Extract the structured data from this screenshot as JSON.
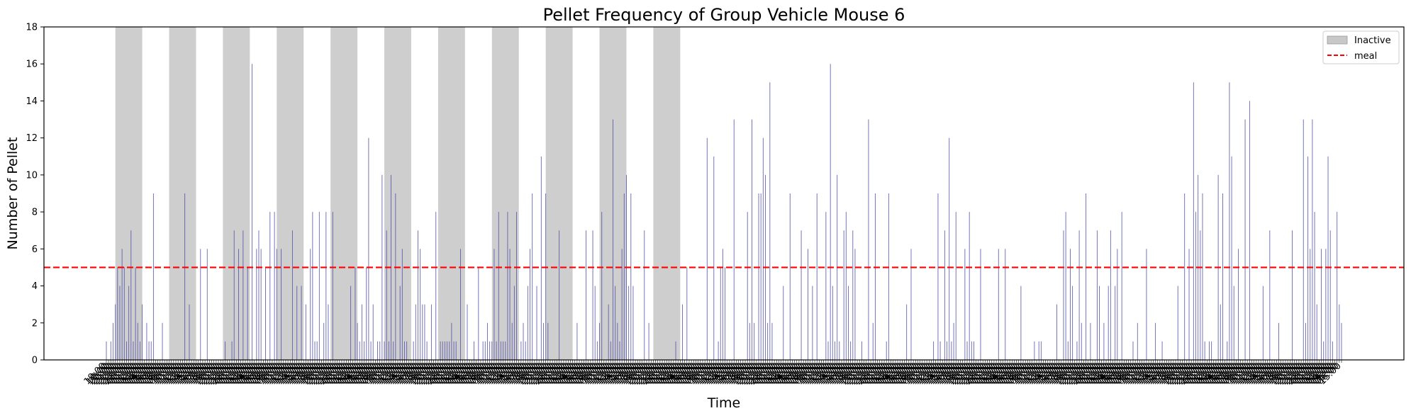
{
  "chart_data": {
    "type": "bar",
    "title": "Pellet Frequency of Group Vehicle Mouse 6",
    "xlabel": "Time",
    "ylabel": "Number of Pellet",
    "ylim": [
      0,
      18
    ],
    "yticks": [
      0,
      2,
      4,
      6,
      8,
      10,
      12,
      14,
      16,
      18
    ],
    "bar_color": "#4b4ba6",
    "meal_threshold": 5,
    "meal_color": "#ff0000",
    "inactive_color": "#bdbdbd",
    "legend": {
      "position": "top-right",
      "entries": [
        "Inactive",
        "meal"
      ]
    },
    "xtick_label_cycle": [
      "19:00",
      "20:00",
      "21:00",
      "22:00",
      "23:00",
      "00:00",
      "01:00",
      "02:00",
      "03:00",
      "04:00",
      "05:00",
      "06:00",
      "07:00",
      "08:00",
      "09:00",
      "10:00",
      "11:00",
      "12:00",
      "13:00",
      "14:00",
      "15:00",
      "16:00",
      "17:00",
      "18:00"
    ],
    "x_start_label": "19:00",
    "x_end_label": "15:00",
    "bars_per_hour": 2,
    "inactive_periods_hours": [
      [
        2,
        8
      ],
      [
        14,
        20
      ],
      [
        26,
        32
      ],
      [
        38,
        44
      ],
      [
        50,
        56
      ],
      [
        62,
        68
      ],
      [
        74,
        80
      ],
      [
        86,
        92
      ],
      [
        98,
        104
      ],
      [
        110,
        116
      ],
      [
        122,
        128
      ]
    ],
    "values": [
      1,
      0,
      1,
      2,
      3,
      5,
      4,
      6,
      5,
      1,
      4,
      7,
      1,
      5,
      2,
      1,
      3,
      0,
      2,
      1,
      1,
      9,
      0,
      0,
      0,
      2,
      0,
      0,
      0,
      0,
      0,
      0,
      0,
      0,
      0,
      9,
      0,
      3,
      0,
      0,
      0,
      0,
      6,
      0,
      0,
      6,
      0,
      0,
      0,
      0,
      0,
      0,
      0,
      1,
      0,
      0,
      1,
      7,
      0,
      6,
      0,
      7,
      0,
      5,
      0,
      16,
      0,
      6,
      7,
      6,
      0,
      5,
      0,
      8,
      0,
      8,
      6,
      0,
      6,
      0,
      0,
      0,
      0,
      7,
      0,
      4,
      0,
      4,
      0,
      3,
      0,
      6,
      8,
      1,
      1,
      8,
      0,
      2,
      8,
      3,
      0,
      8,
      0,
      0,
      0,
      0,
      0,
      0,
      0,
      4,
      0,
      5,
      2,
      1,
      3,
      1,
      5,
      12,
      1,
      3,
      0,
      1,
      1,
      10,
      1,
      7,
      1,
      10,
      1,
      9,
      0,
      4,
      6,
      1,
      1,
      0,
      0,
      1,
      3,
      7,
      6,
      3,
      3,
      1,
      0,
      3,
      0,
      8,
      0,
      1,
      1,
      1,
      1,
      1,
      2,
      1,
      1,
      0,
      6,
      0,
      0,
      3,
      0,
      0,
      1,
      0,
      5,
      0,
      1,
      1,
      2,
      1,
      1,
      6,
      1,
      8,
      1,
      1,
      1,
      8,
      6,
      2,
      4,
      8,
      0,
      1,
      2,
      1,
      4,
      6,
      9,
      0,
      4,
      0,
      11,
      2,
      9,
      2,
      0,
      0,
      0,
      0,
      7,
      0,
      0,
      0,
      0,
      0,
      0,
      0,
      2,
      0,
      0,
      0,
      7,
      0,
      0,
      7,
      4,
      1,
      2,
      8,
      0,
      0,
      3,
      1,
      13,
      4,
      2,
      1,
      6,
      9,
      10,
      4,
      9,
      4,
      0,
      0,
      0,
      0,
      7,
      0,
      2,
      0,
      0,
      0,
      0,
      0,
      0,
      0,
      0,
      0,
      0,
      0,
      1,
      0,
      0,
      3,
      0,
      5,
      0,
      0,
      0,
      0,
      0,
      0,
      0,
      0,
      12,
      0,
      0,
      11,
      0,
      1,
      5,
      6,
      5,
      0,
      0,
      0,
      13,
      0,
      0,
      0,
      0,
      0,
      8,
      2,
      13,
      2,
      0,
      9,
      9,
      12,
      10,
      2,
      15,
      2,
      0,
      0,
      0,
      0,
      4,
      0,
      0,
      9,
      0,
      0,
      0,
      0,
      7,
      0,
      0,
      6,
      0,
      4,
      0,
      9,
      0,
      0,
      0,
      8,
      1,
      16,
      4,
      1,
      10,
      1,
      0,
      7,
      8,
      4,
      1,
      7,
      6,
      0,
      0,
      1,
      0,
      0,
      13,
      0,
      2,
      9,
      0,
      0,
      0,
      0,
      1,
      9,
      0,
      0,
      0,
      0,
      0,
      0,
      0,
      3,
      0,
      6,
      0,
      0,
      0,
      0,
      0,
      0,
      0,
      0,
      0,
      1,
      0,
      9,
      1,
      0,
      7,
      1,
      12,
      1,
      2,
      8,
      0,
      0,
      0,
      6,
      1,
      8,
      1,
      1,
      0,
      0,
      6,
      0,
      0,
      0,
      0,
      0,
      0,
      0,
      6,
      0,
      0,
      6,
      0,
      0,
      0,
      0,
      0,
      0,
      4,
      0,
      0,
      0,
      0,
      0,
      1,
      0,
      1,
      1,
      0,
      0,
      0,
      0,
      0,
      0,
      3,
      0,
      0,
      7,
      8,
      1,
      6,
      4,
      0,
      1,
      7,
      2,
      0,
      9,
      0,
      2,
      0,
      0,
      7,
      4,
      0,
      2,
      0,
      4,
      7,
      0,
      4,
      6,
      0,
      8,
      0,
      0,
      0,
      0,
      1,
      0,
      2,
      0,
      0,
      0,
      6,
      0,
      0,
      0,
      2,
      0,
      0,
      1,
      0,
      0,
      0,
      0,
      0,
      0,
      4,
      0,
      0,
      9,
      0,
      6,
      0,
      15,
      8,
      10,
      7,
      9,
      1,
      0,
      1,
      1,
      0,
      0,
      10,
      3,
      9,
      0,
      1,
      15,
      11,
      4,
      0,
      6,
      0,
      0,
      13,
      0,
      14,
      0,
      0,
      0,
      0,
      0,
      4,
      0,
      0,
      7,
      0,
      0,
      0,
      2,
      0,
      0,
      0,
      0,
      0,
      7,
      0,
      0,
      0,
      0,
      13,
      2,
      11,
      6,
      13,
      8,
      3,
      0,
      6,
      1,
      6,
      11,
      7,
      1,
      0,
      8,
      3,
      2
    ]
  }
}
